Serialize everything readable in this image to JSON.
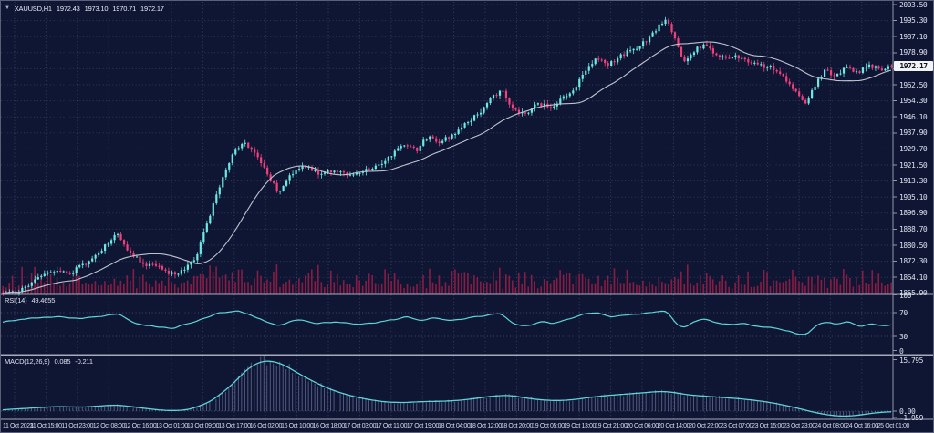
{
  "header": {
    "dropdown_icon": "▼",
    "symbol": "XAUUSD,H1",
    "open": "1972.43",
    "high": "1973.10",
    "low": "1970.71",
    "close": "1972.17"
  },
  "price_tag": "1972.17",
  "panes": {
    "rsi": {
      "name": "RSI(14)",
      "value": "49.4655"
    },
    "macd": {
      "name": "MACD(12,26,9)",
      "value_main": "0.085",
      "value_signal": "-0.211"
    }
  },
  "colors": {
    "background": "#0f1634",
    "grid": "#7d87af",
    "bull": "#6ceae3",
    "bear": "#f43f7d",
    "ma_line": "#bfc3cf",
    "volume": "#8e1c46",
    "indicator_line": "#5fd4d8",
    "macd_histogram": "#6b749c",
    "separator": "#a6abb8",
    "axis_line": "#9095a8",
    "tag_bg": "#f2f3f5",
    "tag_text": "#10131f"
  },
  "chart_data": {
    "type": "candlestick",
    "symbol": "XAUUSD",
    "timeframe": "H1",
    "current_ohlc": {
      "open": 1972.43,
      "high": 1973.1,
      "low": 1970.71,
      "close": 1972.17
    },
    "candle_count": 280,
    "y_axis": {
      "min": 1855.9,
      "max": 2003.5,
      "step": 8.2,
      "labels": [
        "2003.50",
        "1995.30",
        "1987.10",
        "1978.90",
        "1970.70",
        "1962.50",
        "1954.30",
        "1946.10",
        "1937.90",
        "1929.70",
        "1921.50",
        "1913.30",
        "1905.10",
        "1896.90",
        "1888.70",
        "1880.50",
        "1872.30",
        "1864.10",
        "1855.90"
      ]
    },
    "x_axis": {
      "labels": [
        "11 Oct 2023",
        "11 Oct 15:00",
        "11 Oct 23:00",
        "12 Oct 08:00",
        "12 Oct 16:00",
        "13 Oct 01:00",
        "13 Oct 09:00",
        "13 Oct 17:00",
        "16 Oct 02:00",
        "16 Oct 10:00",
        "16 Oct 18:00",
        "17 Oct 03:00",
        "17 Oct 11:00",
        "17 Oct 19:00",
        "18 Oct 04:00",
        "18 Oct 12:00",
        "18 Oct 20:00",
        "19 Oct 05:00",
        "19 Oct 13:00",
        "19 Oct 21:00",
        "20 Oct 06:00",
        "20 Oct 14:00",
        "20 Oct 22:00",
        "23 Oct 07:00",
        "23 Oct 15:00",
        "23 Oct 23:00",
        "24 Oct 08:00",
        "24 Oct 16:00",
        "25 Oct 01:00"
      ]
    },
    "price_path": [
      [
        0,
        1857
      ],
      [
        0.012,
        1855.9
      ],
      [
        0.03,
        1861
      ],
      [
        0.055,
        1868
      ],
      [
        0.075,
        1866
      ],
      [
        0.095,
        1872
      ],
      [
        0.115,
        1880
      ],
      [
        0.128,
        1886
      ],
      [
        0.142,
        1877
      ],
      [
        0.158,
        1871
      ],
      [
        0.175,
        1869
      ],
      [
        0.192,
        1865.5
      ],
      [
        0.205,
        1868
      ],
      [
        0.218,
        1875
      ],
      [
        0.232,
        1895
      ],
      [
        0.248,
        1916
      ],
      [
        0.262,
        1930
      ],
      [
        0.272,
        1932.5
      ],
      [
        0.285,
        1927
      ],
      [
        0.298,
        1916
      ],
      [
        0.31,
        1907.5
      ],
      [
        0.323,
        1917
      ],
      [
        0.338,
        1921
      ],
      [
        0.355,
        1917
      ],
      [
        0.372,
        1919
      ],
      [
        0.388,
        1916
      ],
      [
        0.405,
        1918
      ],
      [
        0.422,
        1921
      ],
      [
        0.438,
        1927
      ],
      [
        0.452,
        1932
      ],
      [
        0.465,
        1929
      ],
      [
        0.478,
        1936
      ],
      [
        0.492,
        1933
      ],
      [
        0.508,
        1938
      ],
      [
        0.525,
        1944
      ],
      [
        0.54,
        1950
      ],
      [
        0.553,
        1957
      ],
      [
        0.562,
        1960
      ],
      [
        0.575,
        1949
      ],
      [
        0.588,
        1947
      ],
      [
        0.602,
        1953
      ],
      [
        0.615,
        1951
      ],
      [
        0.628,
        1955
      ],
      [
        0.642,
        1960
      ],
      [
        0.655,
        1970
      ],
      [
        0.668,
        1976
      ],
      [
        0.682,
        1973
      ],
      [
        0.695,
        1977
      ],
      [
        0.71,
        1981
      ],
      [
        0.722,
        1984
      ],
      [
        0.735,
        1991
      ],
      [
        0.746,
        1996.5
      ],
      [
        0.757,
        1986
      ],
      [
        0.766,
        1973.5
      ],
      [
        0.778,
        1980
      ],
      [
        0.79,
        1983
      ],
      [
        0.802,
        1978
      ],
      [
        0.815,
        1975.5
      ],
      [
        0.828,
        1977
      ],
      [
        0.842,
        1974
      ],
      [
        0.855,
        1972
      ],
      [
        0.868,
        1971
      ],
      [
        0.88,
        1966
      ],
      [
        0.893,
        1958
      ],
      [
        0.903,
        1953.5
      ],
      [
        0.915,
        1963
      ],
      [
        0.925,
        1969.5
      ],
      [
        0.938,
        1967
      ],
      [
        0.95,
        1971.5
      ],
      [
        0.962,
        1968.5
      ],
      [
        0.975,
        1972.5
      ],
      [
        0.988,
        1970.5
      ],
      [
        1,
        1972.17
      ]
    ],
    "moving_average": {
      "window": 24
    },
    "rsi": {
      "period": 14,
      "current": 49.4655,
      "levels": [
        100,
        70,
        30,
        0
      ],
      "level_labels": [
        "100",
        "70",
        "30",
        "0"
      ],
      "path": [
        [
          0,
          54
        ],
        [
          0.03,
          60
        ],
        [
          0.06,
          63
        ],
        [
          0.09,
          60
        ],
        [
          0.12,
          66
        ],
        [
          0.13,
          68
        ],
        [
          0.15,
          52
        ],
        [
          0.17,
          47
        ],
        [
          0.19,
          43
        ],
        [
          0.21,
          52
        ],
        [
          0.24,
          68
        ],
        [
          0.265,
          73
        ],
        [
          0.285,
          62
        ],
        [
          0.31,
          47
        ],
        [
          0.33,
          58
        ],
        [
          0.355,
          52
        ],
        [
          0.38,
          54
        ],
        [
          0.4,
          50
        ],
        [
          0.42,
          53
        ],
        [
          0.44,
          58
        ],
        [
          0.455,
          63
        ],
        [
          0.47,
          56
        ],
        [
          0.485,
          62
        ],
        [
          0.5,
          56
        ],
        [
          0.52,
          60
        ],
        [
          0.545,
          66
        ],
        [
          0.56,
          69
        ],
        [
          0.575,
          50
        ],
        [
          0.59,
          47
        ],
        [
          0.605,
          55
        ],
        [
          0.62,
          52
        ],
        [
          0.64,
          60
        ],
        [
          0.655,
          68
        ],
        [
          0.67,
          70
        ],
        [
          0.685,
          62
        ],
        [
          0.7,
          66
        ],
        [
          0.72,
          68
        ],
        [
          0.735,
          71
        ],
        [
          0.748,
          73
        ],
        [
          0.758,
          50
        ],
        [
          0.768,
          45
        ],
        [
          0.78,
          56
        ],
        [
          0.79,
          60
        ],
        [
          0.805,
          52
        ],
        [
          0.82,
          50
        ],
        [
          0.835,
          52
        ],
        [
          0.85,
          47
        ],
        [
          0.865,
          45
        ],
        [
          0.88,
          40
        ],
        [
          0.895,
          34
        ],
        [
          0.905,
          32
        ],
        [
          0.915,
          48
        ],
        [
          0.927,
          55
        ],
        [
          0.94,
          50
        ],
        [
          0.952,
          56
        ],
        [
          0.965,
          46
        ],
        [
          0.978,
          52
        ],
        [
          0.99,
          47
        ],
        [
          1,
          49.47
        ]
      ]
    },
    "macd": {
      "fast": 12,
      "slow": 26,
      "signal_period": 9,
      "current_main": 0.085,
      "current_signal": -0.211,
      "axis_labels": [
        "15.795",
        "0.00",
        "-1.959"
      ],
      "axis_values": [
        15.795,
        0,
        -1.959
      ],
      "path": [
        [
          0,
          0.4
        ],
        [
          0.03,
          0.9
        ],
        [
          0.06,
          1.4
        ],
        [
          0.09,
          1.2
        ],
        [
          0.11,
          1.6
        ],
        [
          0.13,
          1.9
        ],
        [
          0.15,
          1.2
        ],
        [
          0.17,
          0.5
        ],
        [
          0.19,
          0.1
        ],
        [
          0.21,
          0.4
        ],
        [
          0.235,
          3
        ],
        [
          0.26,
          8.5
        ],
        [
          0.275,
          13
        ],
        [
          0.29,
          15.3
        ],
        [
          0.3,
          15.6
        ],
        [
          0.315,
          14.5
        ],
        [
          0.33,
          12
        ],
        [
          0.35,
          9
        ],
        [
          0.37,
          6.5
        ],
        [
          0.39,
          4.8
        ],
        [
          0.41,
          3.6
        ],
        [
          0.43,
          2.8
        ],
        [
          0.45,
          2.6
        ],
        [
          0.47,
          2.9
        ],
        [
          0.49,
          3
        ],
        [
          0.51,
          3.2
        ],
        [
          0.53,
          3.8
        ],
        [
          0.55,
          4.6
        ],
        [
          0.57,
          4.9
        ],
        [
          0.585,
          4.2
        ],
        [
          0.6,
          3.6
        ],
        [
          0.62,
          3.2
        ],
        [
          0.64,
          3.4
        ],
        [
          0.66,
          4.2
        ],
        [
          0.68,
          4.8
        ],
        [
          0.7,
          5.2
        ],
        [
          0.72,
          5.6
        ],
        [
          0.74,
          6.1
        ],
        [
          0.755,
          5.8
        ],
        [
          0.77,
          5
        ],
        [
          0.79,
          4.6
        ],
        [
          0.81,
          4.2
        ],
        [
          0.83,
          3.8
        ],
        [
          0.85,
          3.2
        ],
        [
          0.87,
          2.4
        ],
        [
          0.89,
          1.2
        ],
        [
          0.905,
          0.2
        ],
        [
          0.92,
          -0.8
        ],
        [
          0.935,
          -1.4
        ],
        [
          0.95,
          -1.6
        ],
        [
          0.965,
          -1.2
        ],
        [
          0.98,
          -0.6
        ],
        [
          0.995,
          -0.2
        ],
        [
          1,
          -0.21
        ]
      ]
    }
  }
}
